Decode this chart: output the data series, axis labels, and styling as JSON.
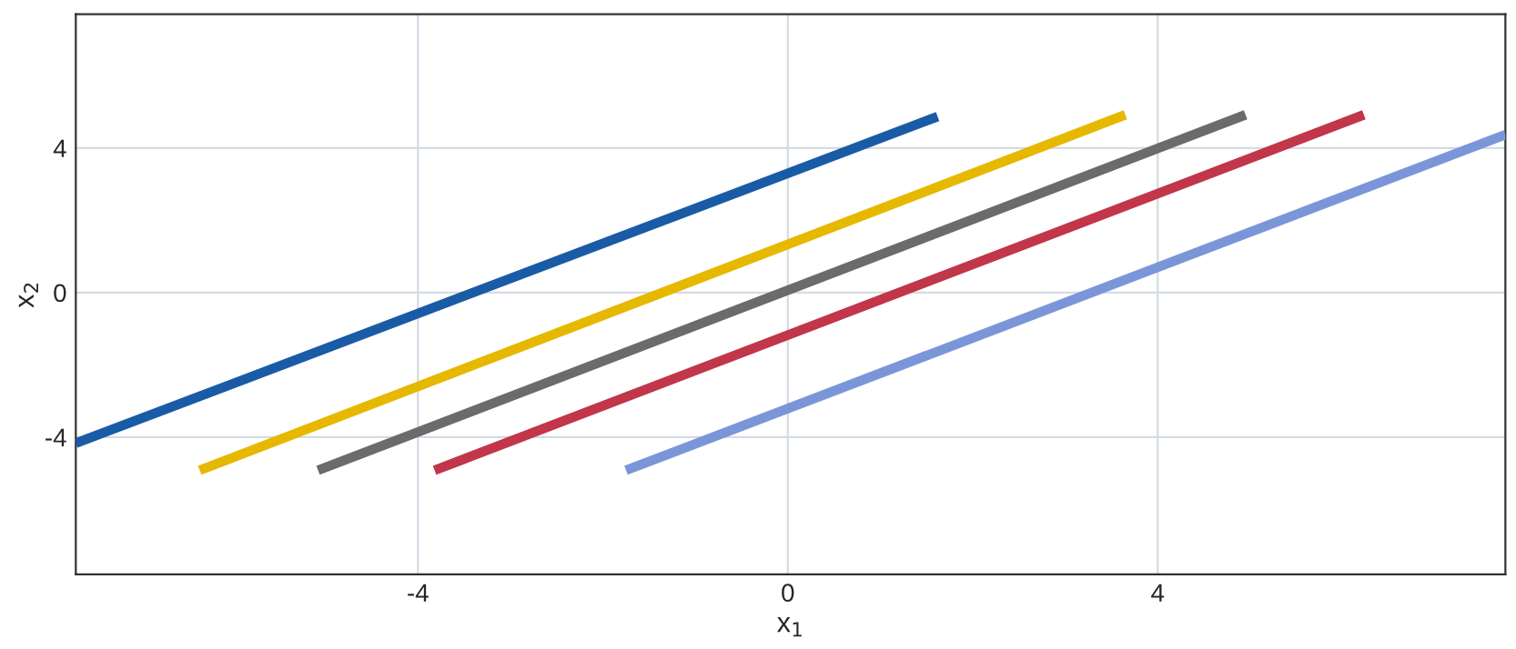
{
  "chart_data": {
    "type": "line",
    "xlabel": "x$_{1}$",
    "ylabel": "x$_{2}$",
    "series": [
      {
        "color": "#1a5ba6",
        "x": [
          -7.7,
          1.62
        ],
        "values": [
          -4.17,
          4.87
        ]
      },
      {
        "color": "#e6b800",
        "x": [
          -6.36,
          3.65
        ],
        "values": [
          -4.92,
          4.92
        ]
      },
      {
        "color": "#6b6b6b",
        "x": [
          -5.08,
          4.95
        ],
        "values": [
          -4.92,
          4.92
        ]
      },
      {
        "color": "#c1364a",
        "x": [
          -3.82,
          6.23
        ],
        "values": [
          -4.92,
          4.92
        ]
      },
      {
        "color": "#7b96d8",
        "x": [
          -1.75,
          7.76
        ],
        "values": [
          -4.92,
          4.37
        ]
      }
    ],
    "xlim": [
      -7.7,
      7.76
    ],
    "ylim": [
      -7.8,
      7.7
    ],
    "xticks": [
      -4,
      0,
      4
    ],
    "yticks": [
      -4,
      0,
      4
    ],
    "grid": true,
    "line_style": "solid"
  }
}
